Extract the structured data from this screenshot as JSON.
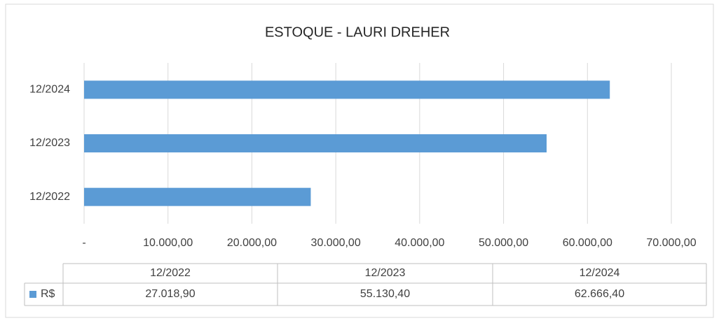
{
  "chart_data": {
    "type": "bar",
    "orientation": "horizontal",
    "title": "ESTOQUE - LAURI DREHER",
    "categories": [
      "12/2022",
      "12/2023",
      "12/2024"
    ],
    "series": [
      {
        "name": "R$",
        "color": "#5b9bd5",
        "values": [
          27018.9,
          55130.4,
          62666.4
        ],
        "value_labels": [
          "27.018,90",
          "55.130,40",
          "62.666,40"
        ]
      }
    ],
    "xlim": [
      0,
      70000
    ],
    "xticks": [
      {
        "value": 0,
        "label": "-"
      },
      {
        "value": 10000,
        "label": "10.000,00"
      },
      {
        "value": 20000,
        "label": "20.000,00"
      },
      {
        "value": 30000,
        "label": "30.000,00"
      },
      {
        "value": 40000,
        "label": "40.000,00"
      },
      {
        "value": 50000,
        "label": "50.000,00"
      },
      {
        "value": 60000,
        "label": "60.000,00"
      },
      {
        "value": 70000,
        "label": "70.000,00"
      }
    ],
    "grid": true,
    "data_table": true
  }
}
